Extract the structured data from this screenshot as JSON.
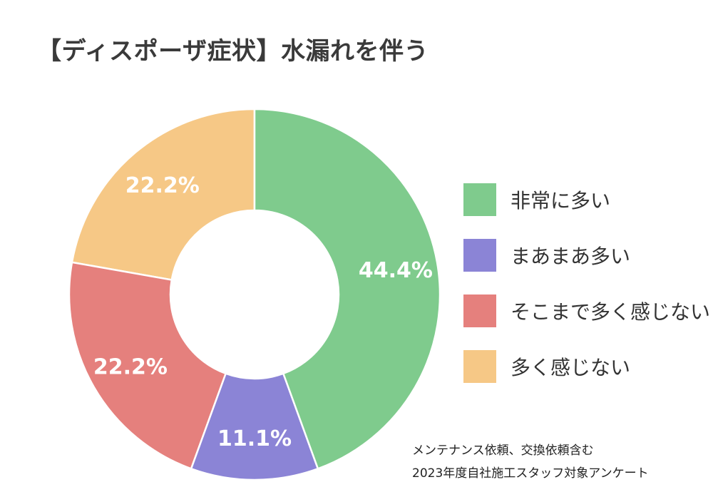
{
  "chart_data": {
    "type": "pie",
    "title": "【ディスポーザ症状】水漏れを伴う",
    "slices": [
      {
        "label": "非常に多い",
        "value": 44.4,
        "display": "44.4%",
        "color": "#7fcb8d"
      },
      {
        "label": "まあまあ多い",
        "value": 11.1,
        "display": "11.1%",
        "color": "#8b84d6"
      },
      {
        "label": "そこまで多く感じない",
        "value": 22.2,
        "display": "22.2%",
        "color": "#e5807d"
      },
      {
        "label": "多く感じない",
        "value": 22.2,
        "display": "22.2%",
        "color": "#f6c886"
      }
    ],
    "draw_order": [
      3,
      2,
      1,
      0
    ],
    "legend_position": "right",
    "donut": true
  },
  "notes": {
    "line1": "メンテナンス依頼、交換依頼含む",
    "line2": "2023年度自社施工スタッフ対象アンケート"
  }
}
